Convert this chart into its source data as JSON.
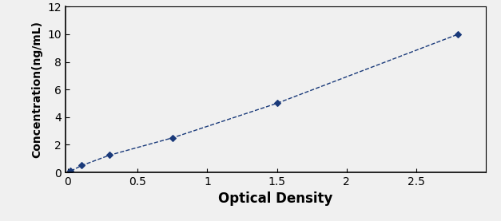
{
  "x": [
    0.02,
    0.1,
    0.3,
    0.75,
    1.5,
    2.8
  ],
  "y": [
    0.1,
    0.5,
    1.25,
    2.5,
    5.0,
    10.0
  ],
  "line_color": "#1a3a7a",
  "marker_color": "#1a3a7a",
  "marker": "D",
  "marker_size": 4,
  "linewidth": 1.0,
  "xlabel": "Optical Density",
  "ylabel": "Concentration(ng/mL)",
  "xlim": [
    -0.02,
    3.0
  ],
  "ylim": [
    0,
    12
  ],
  "xticks": [
    0,
    0.5,
    1,
    1.5,
    2,
    2.5
  ],
  "yticks": [
    0,
    2,
    4,
    6,
    8,
    10,
    12
  ],
  "background_color": "#f0f0f0",
  "xlabel_fontsize": 12,
  "ylabel_fontsize": 10,
  "tick_fontsize": 10,
  "xlabel_fontweight": "bold",
  "ylabel_fontweight": "bold"
}
